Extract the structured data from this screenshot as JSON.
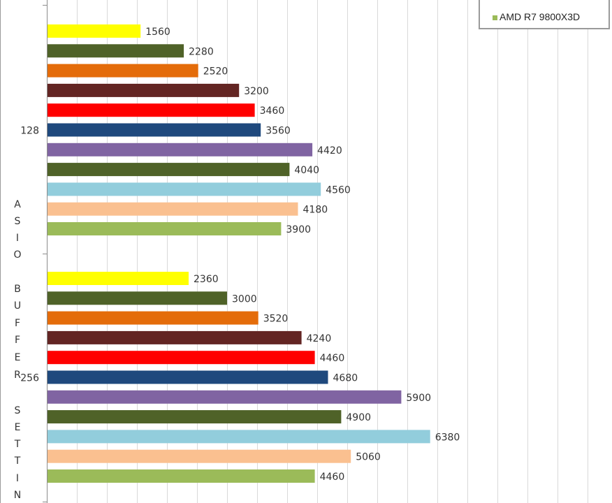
{
  "legend": {
    "visible_entry": "AMD R7 9800X3D",
    "visible_entry_color": "#9bbb59"
  },
  "y_axis_title": "ASIO BUFFER SETTIN",
  "chart_data": {
    "type": "bar",
    "orientation": "horizontal",
    "xlim": [
      0,
      9500
    ],
    "grid": true,
    "groups": [
      {
        "label": "128",
        "values": [
          1560,
          2280,
          2520,
          3200,
          3460,
          3560,
          4420,
          4040,
          4560,
          4180,
          3900
        ],
        "colors": [
          "#ffff00",
          "#4f6228",
          "#e46c0a",
          "#632523",
          "#ff0000",
          "#1f497d",
          "#8064a2",
          "#4f6228",
          "#92cddc",
          "#fac090",
          "#9bbb59"
        ]
      },
      {
        "label": "256",
        "values": [
          2360,
          3000,
          3520,
          4240,
          4460,
          4680,
          5900,
          4900,
          6380,
          5060,
          4460
        ],
        "colors": [
          "#ffff00",
          "#4f6228",
          "#e46c0a",
          "#632523",
          "#ff0000",
          "#1f497d",
          "#8064a2",
          "#4f6228",
          "#92cddc",
          "#fac090",
          "#9bbb59"
        ]
      }
    ]
  }
}
